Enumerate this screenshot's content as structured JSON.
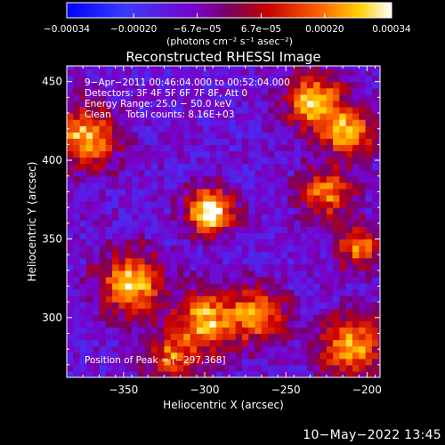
{
  "chart_data": {
    "type": "heatmap",
    "title": "Reconstructed RHESSI Image",
    "xlabel": "Heliocentric X (arcsec)",
    "ylabel": "Heliocentric Y (arcsec)",
    "xlim": [
      -385,
      -192
    ],
    "ylim": [
      262,
      460
    ],
    "x_ticks": [
      -350,
      -300,
      -250,
      -200
    ],
    "y_ticks": [
      300,
      350,
      400,
      450
    ],
    "x_tick_labels": [
      "−350",
      "−300",
      "−250",
      "−200"
    ],
    "y_tick_labels": [
      "300",
      "350",
      "400",
      "450"
    ],
    "colorbar": {
      "range": [
        -0.00034,
        0.00034
      ],
      "tick_values": [
        -0.00034,
        -0.0002,
        -6.7e-05,
        6.7e-05,
        0.0002,
        0.00034
      ],
      "tick_labels": [
        "−0.00034",
        "−0.00020",
        "−6.7e−05",
        "6.7e−05",
        "0.00020",
        "0.00034"
      ],
      "unit_label": "(photons cm⁻² s⁻¹ asec⁻²)"
    },
    "annotations": [
      "9−Apr−2011 00:46:04.000 to 00:52:04.000",
      "Detectors: 3F 4F 5F 6F 7F 8F, Att 0",
      "Energy Range: 25.0 − 50.0 keV",
      "Clean     Total counts: 8.16E+03"
    ],
    "peak_label": "Position of Peak = [−297,368]",
    "features": [
      {
        "x": -297,
        "y": 368,
        "amp": 1.6,
        "sigma": 9
      },
      {
        "x": -232,
        "y": 437,
        "amp": 1.3,
        "sigma": 11
      },
      {
        "x": -212,
        "y": 418,
        "amp": 1.2,
        "sigma": 10
      },
      {
        "x": -373,
        "y": 415,
        "amp": 1.2,
        "sigma": 12
      },
      {
        "x": -345,
        "y": 322,
        "amp": 1.3,
        "sigma": 12
      },
      {
        "x": -300,
        "y": 298,
        "amp": 1.2,
        "sigma": 12
      },
      {
        "x": -268,
        "y": 302,
        "amp": 1.1,
        "sigma": 11
      },
      {
        "x": -210,
        "y": 282,
        "amp": 1.2,
        "sigma": 12
      },
      {
        "x": -225,
        "y": 380,
        "amp": 1.0,
        "sigma": 10
      },
      {
        "x": -205,
        "y": 345,
        "amp": 0.9,
        "sigma": 9
      },
      {
        "x": -320,
        "y": 275,
        "amp": 0.9,
        "sigma": 10
      }
    ]
  },
  "timestamp": "10−May−2022 13:45"
}
